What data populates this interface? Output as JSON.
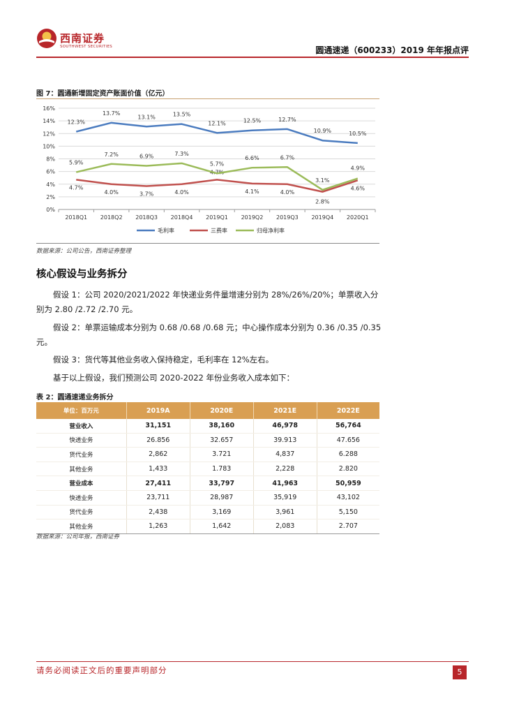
{
  "header": {
    "logo_name": "西南证券",
    "logo_sub": "SOUTHWEST SECURITIES",
    "report_title": "圆通速递（600233）2019 年年报点评"
  },
  "figure": {
    "title": "图 7：圆通新增固定资产账面价值（亿元）",
    "source": "数据来源：公司公告，西南证券整理"
  },
  "chart_data": {
    "type": "line",
    "title": "",
    "categories": [
      "2018Q1",
      "2018Q2",
      "2018Q3",
      "2018Q4",
      "2019Q1",
      "2019Q2",
      "2019Q3",
      "2019Q4",
      "2020Q1"
    ],
    "ylim": [
      0,
      16
    ],
    "yticks": [
      "0%",
      "2%",
      "4%",
      "6%",
      "8%",
      "10%",
      "12%",
      "14%",
      "16%"
    ],
    "grid": true,
    "legend_position": "bottom",
    "series": [
      {
        "name": "毛利率",
        "color": "#4a7bbf",
        "values": [
          12.3,
          13.7,
          13.1,
          13.5,
          12.1,
          12.5,
          12.7,
          10.9,
          10.5
        ],
        "labels": [
          "12.3%",
          "13.7%",
          "13.1%",
          "13.5%",
          "12.1%",
          "12.5%",
          "12.7%",
          "10.9%",
          "10.5%"
        ]
      },
      {
        "name": "三费率",
        "color": "#c0504d",
        "values": [
          4.7,
          4.0,
          3.7,
          4.0,
          4.7,
          4.1,
          4.0,
          2.8,
          4.6
        ],
        "labels": [
          "4.7%",
          "4.0%",
          "3.7%",
          "4.0%",
          "4.7%",
          "4.1%",
          "4.0%",
          "2.8%",
          "4.6%"
        ]
      },
      {
        "name": "归母净利率",
        "color": "#9bbb59",
        "values": [
          5.9,
          7.2,
          6.9,
          7.3,
          5.7,
          6.6,
          6.7,
          3.1,
          4.9
        ],
        "labels": [
          "5.9%",
          "7.2%",
          "6.9%",
          "7.3%",
          "5.7%",
          "6.6%",
          "6.7%",
          "3.1%",
          "4.9%"
        ]
      }
    ]
  },
  "section": {
    "heading": "核心假设与业务拆分",
    "p1": "假设 1：公司 2020/2021/2022 年快递业务件量增速分别为 28%/26%/20%；单票收入分别为 2.80 /2.72 /2.70 元。",
    "p2": "假设 2：单票运输成本分别为 0.68 /0.68 /0.68 元；中心操作成本分别为 0.36 /0.35 /0.35 元。",
    "p3": "假设 3：货代等其他业务收入保持稳定，毛利率在 12%左右。",
    "p4": "基于以上假设，我们预测公司 2020-2022 年份业务收入成本如下："
  },
  "table": {
    "title": "表 2：圆通速递业务拆分",
    "headers": [
      "单位：百万元",
      "2019A",
      "2020E",
      "2021E",
      "2022E"
    ],
    "rows": [
      [
        "营业收入",
        "31,151",
        "38,160",
        "46,978",
        "56,764"
      ],
      [
        "快递业务",
        "26.856",
        "32.657",
        "39.913",
        "47.656"
      ],
      [
        "货代业务",
        "2,862",
        "3.721",
        "4,837",
        "6.288"
      ],
      [
        "其他业务",
        "1,433",
        "1.783",
        "2,228",
        "2.820"
      ],
      [
        "营业成本",
        "27,411",
        "33,797",
        "41,963",
        "50,959"
      ],
      [
        "快递业务",
        "23,711",
        "28,987",
        "35,919",
        "43,102"
      ],
      [
        "货代业务",
        "2,438",
        "3,169",
        "3,961",
        "5,150"
      ],
      [
        "其他业务",
        "1,263",
        "1,642",
        "2,083",
        "2.707"
      ]
    ],
    "source": "数据来源：公司年报，西南证券"
  },
  "footer": {
    "disclaimer": "请务必阅读正文后的重要声明部分",
    "page": "5"
  },
  "colors": {
    "brand": "#b8262a",
    "table_header": "#d99f53"
  }
}
